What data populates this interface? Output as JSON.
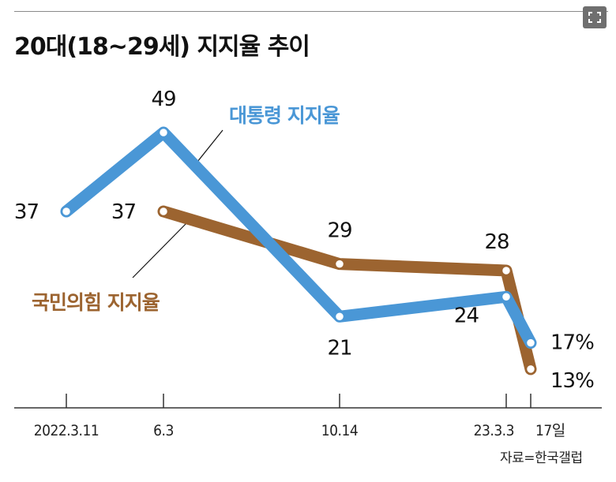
{
  "title": "20대(18~29세) 지지율 추이",
  "source": "자료=한국갤럽",
  "colors": {
    "president": "#4a97d6",
    "ppp": "#9c6430",
    "axis": "#333333",
    "text": "#111111"
  },
  "icons": {
    "expand": "expand-icon"
  },
  "chart_data": {
    "type": "line",
    "title": "20대(18~29세) 지지율 추이",
    "categories": [
      "2022.3.11",
      "6.3",
      "10.14",
      "23.3.3",
      "17일"
    ],
    "ylim": [
      10,
      50
    ],
    "series": [
      {
        "name": "대통령 지지율",
        "key": "president",
        "x": [
          "2022.3.11",
          "6.3",
          "10.14",
          "23.3.3",
          "17일"
        ],
        "values": [
          37,
          49,
          21,
          24,
          17
        ],
        "labels": [
          "37",
          "49",
          "21",
          "24",
          "17%"
        ]
      },
      {
        "name": "국민의힘 지지율",
        "key": "ppp",
        "x": [
          "6.3",
          "10.14",
          "23.3.3",
          "17일"
        ],
        "values": [
          37,
          29,
          28,
          13
        ],
        "labels": [
          "37",
          "29",
          "28",
          "13%"
        ]
      }
    ]
  }
}
